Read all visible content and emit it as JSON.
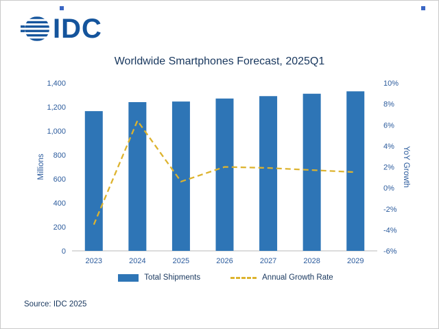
{
  "logo": {
    "text": "IDC",
    "brand_blue": "#14549c"
  },
  "source": "Source: IDC 2025",
  "legend": [
    {
      "label": "Total Shipments",
      "type": "bar",
      "color": "#2e75b6"
    },
    {
      "label": "Annual Growth Rate",
      "type": "line",
      "color": "#ddb32e"
    }
  ],
  "chart_data": {
    "type": "combo",
    "title": "Worldwide Smartphones Forecast, 2025Q1",
    "categories": [
      "2023",
      "2024",
      "2025",
      "2026",
      "2027",
      "2028",
      "2029"
    ],
    "series": [
      {
        "name": "Total Shipments",
        "type": "bar",
        "axis": "left",
        "values": [
          1165,
          1240,
          1245,
          1270,
          1290,
          1310,
          1330
        ],
        "color": "#2e75b6"
      },
      {
        "name": "Annual Growth Rate",
        "type": "line",
        "axis": "right",
        "values": [
          -3.5,
          6.4,
          0.6,
          2.0,
          1.9,
          1.7,
          1.5
        ],
        "color": "#ddb32e",
        "dashed": true
      }
    ],
    "left_axis": {
      "label": "Millions",
      "min": 0,
      "max": 1400,
      "step": 200
    },
    "right_axis": {
      "label": "YoY Growth",
      "min": -6,
      "max": 10,
      "step": 2,
      "suffix": "%"
    },
    "grid": false,
    "legend_position": "bottom"
  }
}
